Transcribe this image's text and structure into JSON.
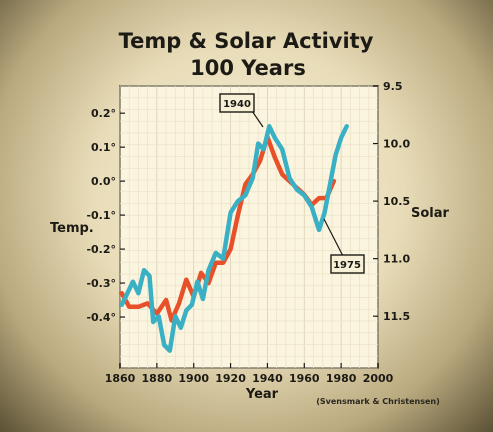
{
  "chart_data": {
    "type": "line",
    "title": "Temp & Solar Activity",
    "subtitle": "100 Years",
    "xlabel": "Year",
    "ylabel_left": "Temp.",
    "ylabel_right": "Solar",
    "xlim": [
      1860,
      2000
    ],
    "ylim_left": [
      -0.55,
      0.28
    ],
    "ylim_right": [
      9.5,
      11.95
    ],
    "right_axis_inverted": true,
    "x_ticks": [
      "1860",
      "1880",
      "1900",
      "1920",
      "1940",
      "1960",
      "1980",
      "2000"
    ],
    "y_left_ticks": [
      "0.2°",
      "0.1°",
      "0.0°",
      "-0.1°",
      "-0.2°",
      "-0.3°",
      "-0.4°"
    ],
    "y_left_values": [
      0.2,
      0.1,
      0.0,
      -0.1,
      -0.2,
      -0.3,
      -0.4
    ],
    "y_right_ticks": [
      "9.5",
      "10.0",
      "10.5",
      "11.0",
      "11.5"
    ],
    "y_right_values": [
      9.5,
      10.0,
      10.5,
      11.0,
      11.5
    ],
    "grid": true,
    "colors": {
      "temp": "#e8502a",
      "solar": "#3ab0c4"
    },
    "series": [
      {
        "key": "temp",
        "axis": "left",
        "x": [
          1861,
          1865,
          1870,
          1875,
          1880,
          1885,
          1888,
          1892,
          1896,
          1900,
          1904,
          1908,
          1912,
          1916,
          1920,
          1924,
          1928,
          1932,
          1936,
          1940,
          1944,
          1948,
          1952,
          1956,
          1960,
          1964,
          1968,
          1972,
          1976
        ],
        "y": [
          -0.33,
          -0.37,
          -0.37,
          -0.36,
          -0.39,
          -0.35,
          -0.41,
          -0.36,
          -0.29,
          -0.34,
          -0.27,
          -0.3,
          -0.24,
          -0.24,
          -0.2,
          -0.1,
          -0.01,
          0.02,
          0.06,
          0.13,
          0.07,
          0.02,
          0.0,
          -0.02,
          -0.04,
          -0.07,
          -0.05,
          -0.05,
          0.0
        ]
      },
      {
        "key": "solar",
        "axis": "right",
        "x": [
          1861,
          1864,
          1867,
          1870,
          1873,
          1876,
          1878,
          1881,
          1884,
          1887,
          1890,
          1893,
          1896,
          1899,
          1902,
          1905,
          1908,
          1912,
          1916,
          1920,
          1924,
          1928,
          1932,
          1935,
          1938,
          1941,
          1944,
          1948,
          1952,
          1956,
          1960,
          1964,
          1968,
          1971,
          1974,
          1977,
          1980,
          1983
        ],
        "y": [
          11.4,
          11.3,
          11.2,
          11.3,
          11.1,
          11.15,
          11.55,
          11.5,
          11.75,
          11.8,
          11.5,
          11.6,
          11.45,
          11.4,
          11.2,
          11.35,
          11.1,
          10.95,
          11.0,
          10.6,
          10.5,
          10.45,
          10.3,
          10.0,
          10.05,
          9.85,
          9.95,
          10.05,
          10.3,
          10.4,
          10.45,
          10.55,
          10.75,
          10.6,
          10.35,
          10.1,
          9.95,
          9.85
        ]
      }
    ],
    "annotations": [
      "1940",
      "1975"
    ],
    "credit": "(Svensmark & Christensen)"
  }
}
